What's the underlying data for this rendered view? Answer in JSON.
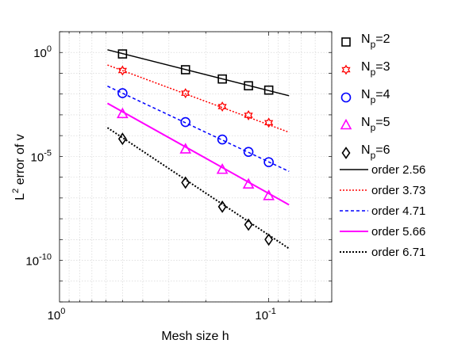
{
  "chart_data": {
    "type": "scatter",
    "title": "",
    "xlabel": "Mesh size h",
    "ylabel": "L² error of v",
    "ylabel_base": "L",
    "ylabel_sup": "2",
    "ylabel_rest": " error of v",
    "xscale": "log",
    "yscale": "log",
    "x_reversed": true,
    "xlim": [
      1,
      0.05
    ],
    "ylim": [
      1e-12,
      10.0
    ],
    "grid": true,
    "legend_position": "outside-right",
    "x_ticks": [
      {
        "value": 1,
        "base": "10",
        "exp": "0"
      },
      {
        "value": 0.1,
        "base": "10",
        "exp": "-1"
      }
    ],
    "y_ticks": [
      {
        "value": 1,
        "base": "10",
        "exp": "0"
      },
      {
        "value": 1e-05,
        "base": "10",
        "exp": "-5"
      },
      {
        "value": 1e-10,
        "base": "10",
        "exp": "-10"
      }
    ],
    "series": [
      {
        "name_base": "N",
        "name_sub": "p",
        "name_rest": "=2",
        "marker": "square",
        "color": "#000000",
        "x": [
          0.5,
          0.25,
          0.1667,
          0.125,
          0.1
        ],
        "y": [
          0.85,
          0.148,
          0.053,
          0.025,
          0.0155
        ]
      },
      {
        "name_base": "N",
        "name_sub": "p",
        "name_rest": "=3",
        "marker": "hexagram",
        "color": "#ff0000",
        "x": [
          0.5,
          0.25,
          0.1667,
          0.125,
          0.1
        ],
        "y": [
          0.135,
          0.011,
          0.0025,
          0.00095,
          0.00042
        ]
      },
      {
        "name_base": "N",
        "name_sub": "p",
        "name_rest": "=4",
        "marker": "circle",
        "color": "#0000ff",
        "x": [
          0.5,
          0.25,
          0.1667,
          0.125,
          0.1
        ],
        "y": [
          0.011,
          0.00045,
          6.5e-05,
          1.65e-05,
          5.3e-06
        ]
      },
      {
        "name_base": "N",
        "name_sub": "p",
        "name_rest": "=5",
        "marker": "triangle",
        "color": "#ff00ff",
        "x": [
          0.5,
          0.25,
          0.1667,
          0.125,
          0.1
        ],
        "y": [
          0.0011,
          2.2e-05,
          2.3e-06,
          4.5e-07,
          1.25e-07
        ]
      },
      {
        "name_base": "N",
        "name_sub": "p",
        "name_rest": "=6",
        "marker": "diamond",
        "color": "#000000",
        "x": [
          0.5,
          0.25,
          0.1667,
          0.125,
          0.1
        ],
        "y": [
          7e-05,
          5.5e-07,
          3.8e-08,
          5.2e-09,
          1e-09
        ]
      }
    ],
    "fit_lines": [
      {
        "label": "order 2.56",
        "color": "#000000",
        "dash": "solid",
        "width": "normal",
        "x": [
          0.59,
          0.08
        ],
        "y": [
          1.35,
          0.0083
        ]
      },
      {
        "label": "order 3.73",
        "color": "#ff0000",
        "dash": "dotted",
        "width": "normal",
        "x": [
          0.59,
          0.08
        ],
        "y": [
          0.25,
          0.000145
        ]
      },
      {
        "label": "order 4.71",
        "color": "#0000ff",
        "dash": "dashed",
        "width": "normal",
        "x": [
          0.59,
          0.08
        ],
        "y": [
          0.024,
          1.9e-06
        ]
      },
      {
        "label": "order 5.66",
        "color": "#ff00ff",
        "dash": "solid",
        "width": "thick",
        "x": [
          0.59,
          0.08
        ],
        "y": [
          0.0036,
          4.7e-08
        ]
      },
      {
        "label": "order 6.71",
        "color": "#000000",
        "dash": "dotted",
        "width": "thick",
        "x": [
          0.59,
          0.08
        ],
        "y": [
          0.00024,
          3.7e-10
        ]
      }
    ]
  }
}
